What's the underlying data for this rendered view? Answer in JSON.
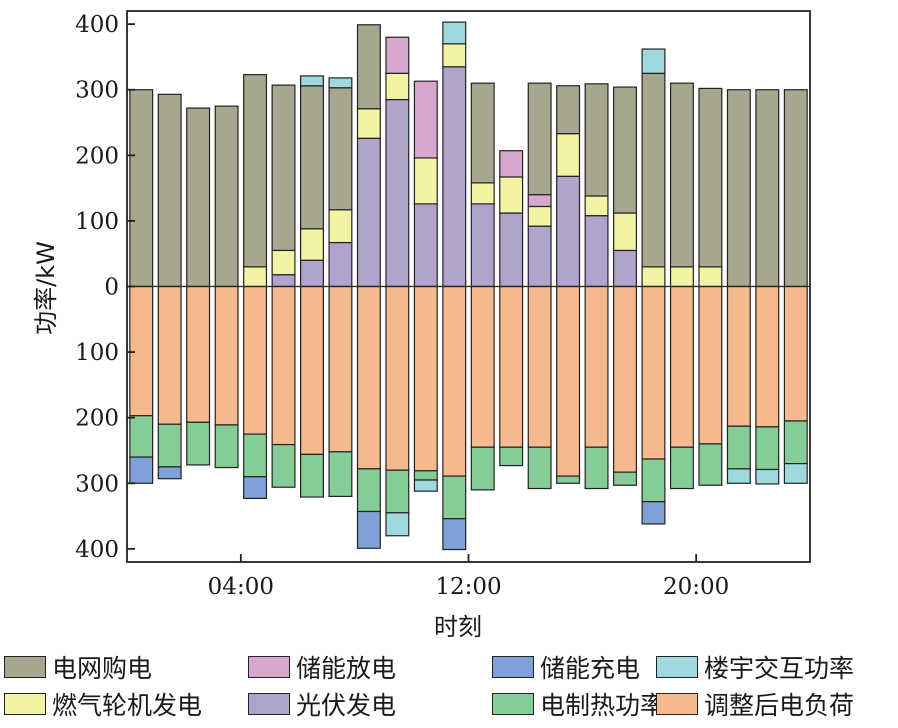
{
  "chart_data": {
    "type": "bar",
    "stacked": true,
    "xlabel": "时刻",
    "ylabel": "功率/kW",
    "ylim": [
      -420,
      420
    ],
    "yticks": [
      400,
      300,
      200,
      100,
      0,
      -100,
      -200,
      -300,
      -400
    ],
    "ytick_labels": [
      "400",
      "300",
      "200",
      "100",
      "0",
      "100",
      "200",
      "300",
      "400"
    ],
    "xticks": [
      {
        "hour": 4,
        "label": "04:00"
      },
      {
        "hour": 12,
        "label": "12:00"
      },
      {
        "hour": 20,
        "label": "20:00"
      }
    ],
    "hours": [
      1,
      2,
      3,
      4,
      5,
      6,
      7,
      8,
      9,
      10,
      11,
      12,
      13,
      14,
      15,
      16,
      17,
      18,
      19,
      20,
      21,
      22,
      23,
      24
    ],
    "series": [
      {
        "name": "光伏发电",
        "key": "pv",
        "color": "#b1a4cc",
        "side": "positive",
        "values": [
          0,
          0,
          0,
          0,
          0,
          18,
          40,
          67,
          226,
          285,
          126,
          335,
          126,
          112,
          92,
          168,
          108,
          55,
          0,
          0,
          0,
          0,
          0,
          0
        ]
      },
      {
        "name": "燃气轮机发电",
        "key": "gt",
        "color": "#f2f3a3",
        "side": "positive",
        "values": [
          0,
          0,
          0,
          0,
          30,
          37,
          48,
          50,
          45,
          40,
          70,
          35,
          32,
          55,
          30,
          65,
          30,
          57,
          30,
          30,
          30,
          0,
          0,
          0
        ]
      },
      {
        "name": "储能放电",
        "key": "ess_dis",
        "color": "#d9a7cd",
        "side": "positive",
        "values": [
          0,
          0,
          0,
          0,
          0,
          0,
          0,
          0,
          0,
          55,
          117,
          0,
          0,
          40,
          18,
          0,
          0,
          0,
          0,
          0,
          0,
          0,
          0,
          0
        ]
      },
      {
        "name": "电网购电",
        "key": "grid",
        "color": "#a6a78e",
        "side": "positive",
        "values": [
          300,
          293,
          272,
          275,
          293,
          252,
          218,
          186,
          128,
          0,
          0,
          0,
          152,
          0,
          170,
          73,
          171,
          192,
          295,
          280,
          272,
          300,
          300,
          300
        ]
      },
      {
        "name": "楼宇交互功率",
        "key": "bld_pos",
        "color": "#9fd9de",
        "side": "positive",
        "values": [
          0,
          0,
          0,
          0,
          0,
          0,
          15,
          15,
          0,
          0,
          0,
          33,
          0,
          0,
          0,
          0,
          0,
          0,
          37,
          0,
          0,
          0,
          0,
          0
        ]
      },
      {
        "name": "调整后电负荷",
        "key": "load",
        "color": "#f5b98e",
        "side": "negative",
        "values": [
          197,
          210,
          207,
          211,
          225,
          241,
          256,
          252,
          278,
          280,
          281,
          289,
          245,
          245,
          245,
          289,
          245,
          283,
          263,
          245,
          240,
          213,
          214,
          205
        ]
      },
      {
        "name": "电制热功率",
        "key": "heat",
        "color": "#86cc96",
        "side": "negative",
        "values": [
          63,
          65,
          65,
          65,
          65,
          65,
          65,
          68,
          65,
          65,
          14,
          65,
          65,
          28,
          63,
          11,
          63,
          20,
          65,
          63,
          63,
          65,
          65,
          65
        ]
      },
      {
        "name": "储能充电",
        "key": "ess_ch",
        "color": "#7ea1d8",
        "side": "negative",
        "values": [
          40,
          18,
          0,
          0,
          33,
          0,
          0,
          0,
          56,
          0,
          0,
          47,
          0,
          0,
          0,
          0,
          0,
          0,
          34,
          0,
          0,
          0,
          0,
          0
        ]
      },
      {
        "name": "楼宇交互功率",
        "key": "bld_neg",
        "color": "#9fd9de",
        "side": "negative",
        "values": [
          0,
          0,
          0,
          0,
          0,
          0,
          0,
          0,
          0,
          35,
          17,
          0,
          0,
          0,
          0,
          0,
          0,
          0,
          0,
          0,
          0,
          22,
          22,
          30
        ]
      }
    ],
    "legend_location": "bottom"
  },
  "legend": {
    "items": [
      {
        "label": "电网购电",
        "color": "#a6a78e"
      },
      {
        "label": "储能放电",
        "color": "#d9a7cd"
      },
      {
        "label": "储能充电",
        "color": "#7ea1d8"
      },
      {
        "label": "楼宇交互功率",
        "color": "#9fd9de"
      },
      {
        "label": "燃气轮机发电",
        "color": "#f2f3a3"
      },
      {
        "label": "光伏发电",
        "color": "#b1a4cc"
      },
      {
        "label": "电制热功率",
        "color": "#86cc96"
      },
      {
        "label": "调整后电负荷",
        "color": "#f5b98e"
      }
    ]
  },
  "colors": {
    "axis": "#222222",
    "bar_edge": "#222222",
    "background": "#ffffff"
  }
}
